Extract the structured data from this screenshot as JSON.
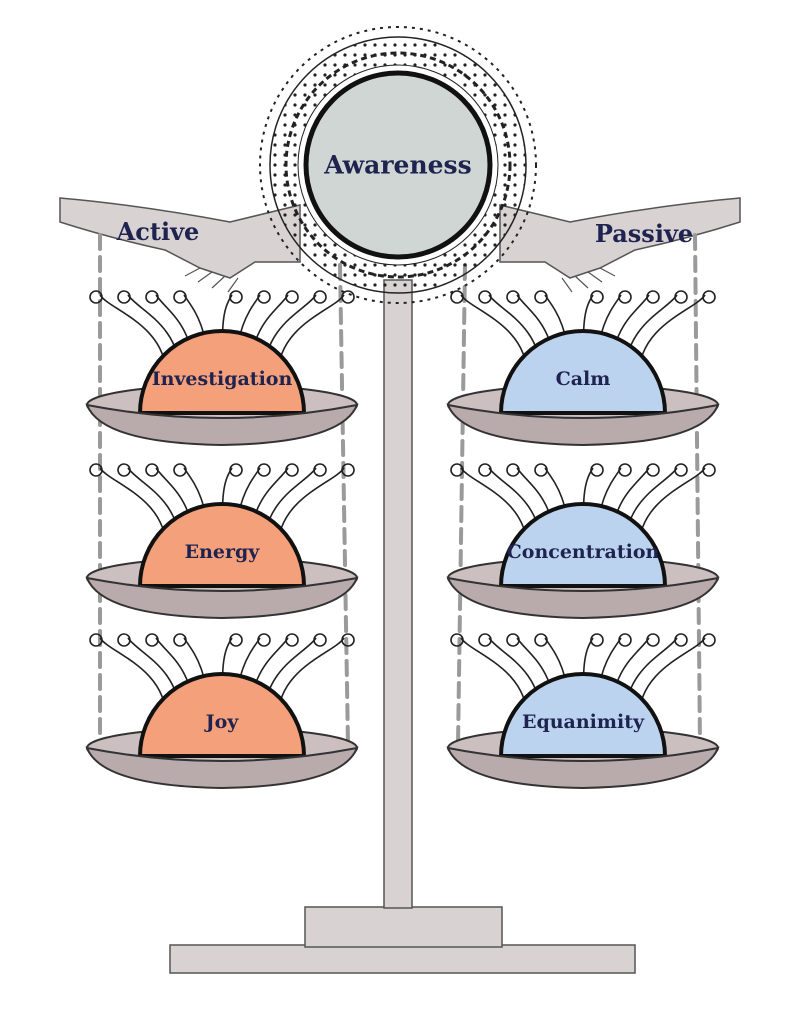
{
  "center": {
    "label": "Awareness",
    "color": "#cfd6d4"
  },
  "arms": {
    "left": "Active",
    "right": "Passive"
  },
  "active_factors": [
    {
      "label": "Investigation"
    },
    {
      "label": "Energy"
    },
    {
      "label": "Joy"
    }
  ],
  "passive_factors": [
    {
      "label": "Calm"
    },
    {
      "label": "Concentration"
    },
    {
      "label": "Equanimity"
    }
  ],
  "colors": {
    "active_dome": "#f4a07a",
    "passive_dome": "#bcd3ef",
    "stand": "#d9d2d3",
    "outline": "#111111",
    "text": "#1e2350"
  }
}
